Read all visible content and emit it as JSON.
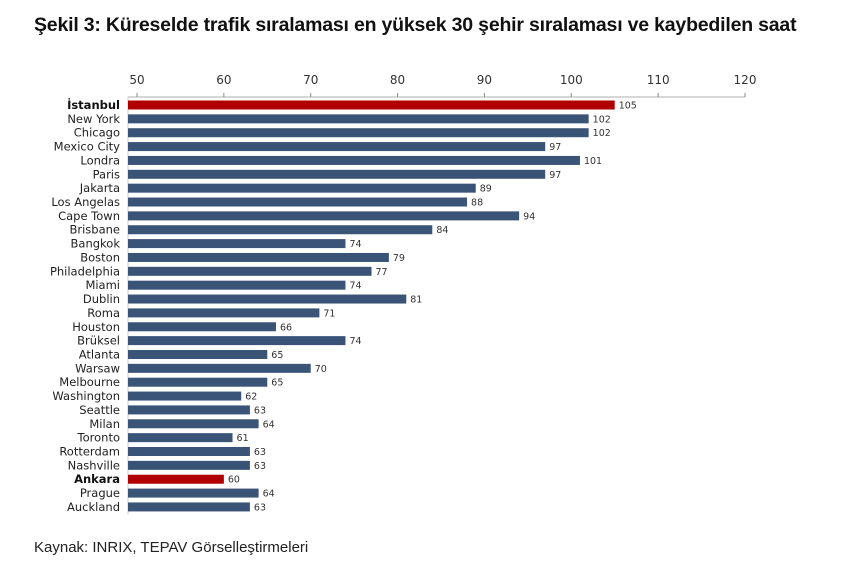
{
  "title": "Şekil 3: Küreselde trafik sıralaması en yüksek 30 şehir sıralaması ve kaybedilen saat",
  "source": "Kaynak: INRIX, TEPAV Görselleştirmeleri",
  "chart_data": {
    "type": "bar",
    "orientation": "horizontal",
    "title": "Şekil 3: Küreselde trafik sıralaması en yüksek 30 şehir sıralaması ve kaybedilen saat",
    "xlabel": "",
    "ylabel": "",
    "xlim": [
      50,
      120
    ],
    "xticks": [
      50,
      60,
      70,
      80,
      90,
      100,
      110,
      120
    ],
    "axis_position": "top",
    "grid": false,
    "colors": {
      "default": "#3a5478",
      "highlight": "#b00000"
    },
    "categories": [
      "İstanbul",
      "New York",
      "Chicago",
      "Mexico City",
      "Londra",
      "Paris",
      "Jakarta",
      "Los Angelas",
      "Cape Town",
      "Brisbane",
      "Bangkok",
      "Boston",
      "Philadelphia",
      "Miami",
      "Dublin",
      "Roma",
      "Houston",
      "Brüksel",
      "Atlanta",
      "Warsaw",
      "Melbourne",
      "Washington",
      "Seattle",
      "Milan",
      "Toronto",
      "Rotterdam",
      "Nashville",
      "Ankara",
      "Prague",
      "Auckland"
    ],
    "values": [
      105,
      102,
      102,
      97,
      101,
      97,
      89,
      88,
      94,
      84,
      74,
      79,
      77,
      74,
      81,
      71,
      66,
      74,
      65,
      70,
      65,
      62,
      63,
      64,
      61,
      63,
      63,
      60,
      64,
      63
    ],
    "highlighted": [
      "İstanbul",
      "Ankara"
    ]
  }
}
